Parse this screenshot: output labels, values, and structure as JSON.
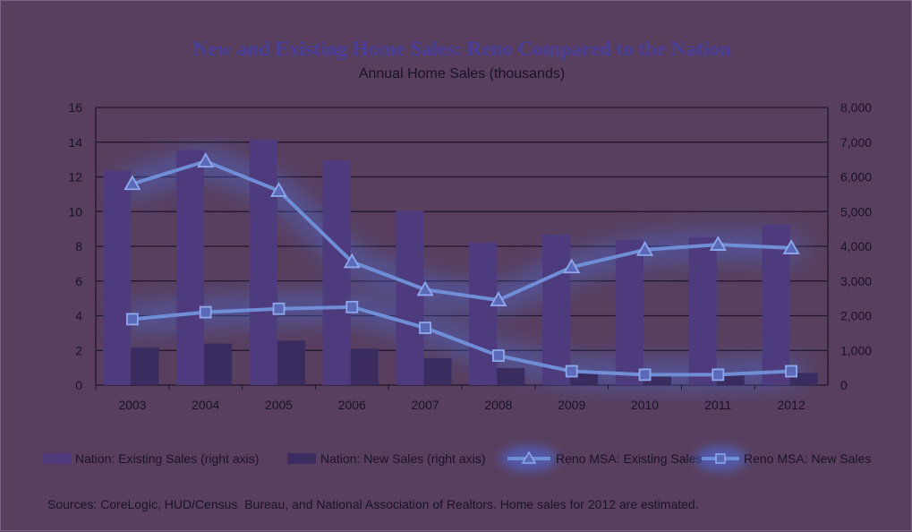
{
  "chart_data": {
    "type": "bar",
    "title": "New and Existing Home Sales: Reno Compared to the Nation",
    "subtitle": "Annual Home Sales (thousands)",
    "categories": [
      "2003",
      "2004",
      "2005",
      "2006",
      "2007",
      "2008",
      "2009",
      "2010",
      "2011",
      "2012"
    ],
    "left_axis": {
      "ylim": [
        0,
        16
      ],
      "ticks": [
        "0",
        "2",
        "4",
        "6",
        "8",
        "10",
        "12",
        "14",
        "16"
      ]
    },
    "right_axis": {
      "ylim": [
        0,
        8000
      ],
      "ticks": [
        "0",
        "1,000",
        "2,000",
        "3,000",
        "4,000",
        "5,000",
        "6,000",
        "7,000",
        "8,000"
      ]
    },
    "grid": true,
    "legend_position": "bottom",
    "series": [
      {
        "name": "Nation: Existing Sales (right axis)",
        "kind": "bar",
        "axis": "right",
        "color": "#4e3b7e",
        "values": [
          6180,
          6780,
          7080,
          6480,
          5020,
          4110,
          4340,
          4190,
          4260,
          4620
        ]
      },
      {
        "name": "Nation: New Sales (right axis)",
        "kind": "bar",
        "axis": "right",
        "color": "#3b2c60",
        "values": [
          1090,
          1200,
          1280,
          1050,
          780,
          490,
          380,
          320,
          310,
          350
        ]
      },
      {
        "name": "Reno MSA: Existing Sales",
        "kind": "line",
        "marker": "triangle",
        "axis": "left",
        "color": "#6f8ed6",
        "values": [
          11.6,
          12.9,
          11.2,
          7.1,
          5.5,
          4.9,
          6.8,
          7.8,
          8.1,
          7.9
        ]
      },
      {
        "name": "Reno MSA: New Sales",
        "kind": "line",
        "marker": "square",
        "axis": "left",
        "color": "#6f8ed6",
        "values": [
          3.8,
          4.2,
          4.4,
          4.5,
          3.3,
          1.7,
          0.8,
          0.6,
          0.6,
          0.8
        ]
      }
    ],
    "source_note": "Sources: CoreLogic, HUD/Census  Bureau, and National Association of Realtors. Home sales for 2012 are estimated."
  }
}
